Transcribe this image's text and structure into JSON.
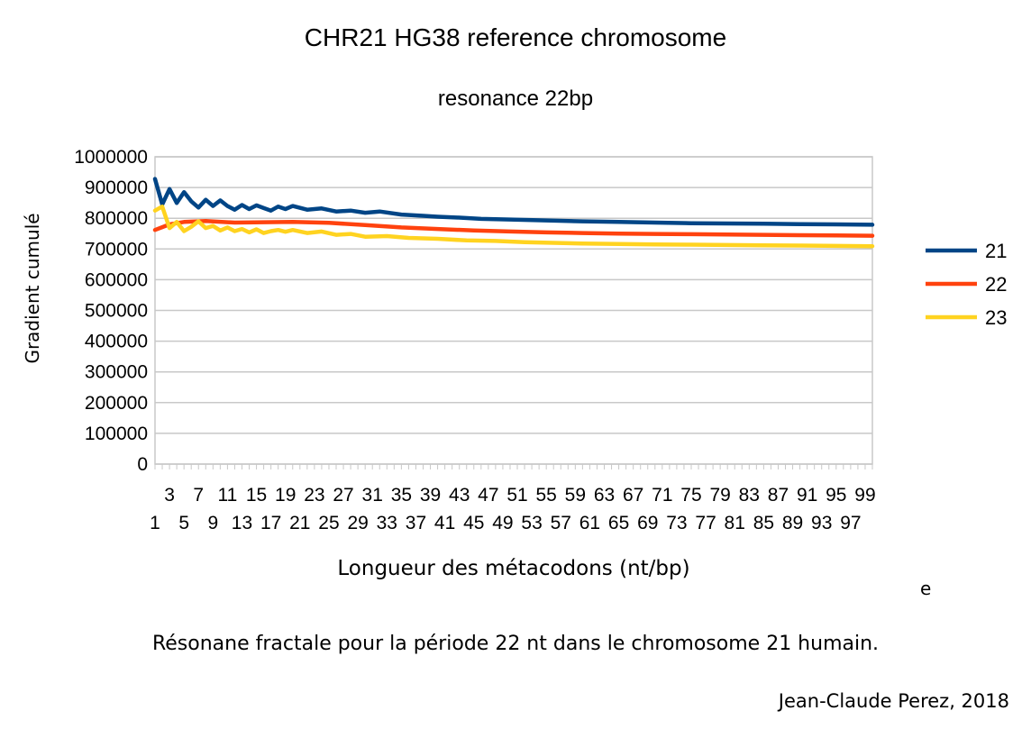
{
  "chart_data": {
    "type": "line",
    "title": "CHR21 HG38 reference chromosome",
    "subtitle": "resonance 22bp",
    "xlabel": "Longueur des métacodons (nt/bp)",
    "ylabel": "Gradient cumulé",
    "ylim": [
      0,
      1000000
    ],
    "yticks": [
      "0",
      "100000",
      "200000",
      "300000",
      "400000",
      "500000",
      "600000",
      "700000",
      "800000",
      "900000",
      "1000000"
    ],
    "x_range": [
      1,
      100
    ],
    "x_tick_labels_upper": [
      "3",
      "7",
      "11",
      "15",
      "19",
      "23",
      "27",
      "31",
      "35",
      "39",
      "43",
      "47",
      "51",
      "55",
      "59",
      "63",
      "67",
      "71",
      "75",
      "79",
      "83",
      "87",
      "91",
      "95",
      "99"
    ],
    "x_tick_labels_lower": [
      "1",
      "5",
      "9",
      "13",
      "17",
      "21",
      "25",
      "29",
      "33",
      "37",
      "41",
      "45",
      "49",
      "53",
      "57",
      "61",
      "65",
      "69",
      "73",
      "77",
      "81",
      "85",
      "89",
      "93",
      "97"
    ],
    "grid": true,
    "legend_position": "right",
    "series": [
      {
        "name": "21",
        "color": "#004586",
        "points": [
          [
            1,
            928000
          ],
          [
            2,
            845000
          ],
          [
            3,
            895000
          ],
          [
            4,
            850000
          ],
          [
            5,
            885000
          ],
          [
            6,
            855000
          ],
          [
            7,
            835000
          ],
          [
            8,
            860000
          ],
          [
            9,
            840000
          ],
          [
            10,
            858000
          ],
          [
            11,
            840000
          ],
          [
            12,
            828000
          ],
          [
            13,
            843000
          ],
          [
            14,
            830000
          ],
          [
            15,
            842000
          ],
          [
            16,
            833000
          ],
          [
            17,
            825000
          ],
          [
            18,
            838000
          ],
          [
            19,
            830000
          ],
          [
            20,
            840000
          ],
          [
            22,
            828000
          ],
          [
            24,
            832000
          ],
          [
            26,
            822000
          ],
          [
            28,
            825000
          ],
          [
            30,
            818000
          ],
          [
            32,
            822000
          ],
          [
            35,
            812000
          ],
          [
            38,
            808000
          ],
          [
            40,
            805000
          ],
          [
            43,
            802000
          ],
          [
            46,
            798000
          ],
          [
            50,
            796000
          ],
          [
            55,
            793000
          ],
          [
            60,
            790000
          ],
          [
            65,
            788000
          ],
          [
            70,
            786000
          ],
          [
            75,
            784000
          ],
          [
            80,
            783000
          ],
          [
            85,
            782000
          ],
          [
            90,
            781000
          ],
          [
            95,
            780000
          ],
          [
            100,
            779000
          ]
        ]
      },
      {
        "name": "22",
        "color": "#ff420e",
        "points": [
          [
            1,
            762000
          ],
          [
            3,
            780000
          ],
          [
            5,
            788000
          ],
          [
            8,
            791000
          ],
          [
            12,
            786000
          ],
          [
            16,
            787000
          ],
          [
            20,
            788000
          ],
          [
            25,
            785000
          ],
          [
            30,
            778000
          ],
          [
            35,
            770000
          ],
          [
            40,
            765000
          ],
          [
            45,
            760000
          ],
          [
            50,
            757000
          ],
          [
            55,
            754000
          ],
          [
            60,
            752000
          ],
          [
            65,
            750000
          ],
          [
            70,
            749000
          ],
          [
            75,
            748000
          ],
          [
            80,
            747000
          ],
          [
            85,
            746000
          ],
          [
            90,
            745000
          ],
          [
            95,
            744000
          ],
          [
            100,
            743000
          ]
        ]
      },
      {
        "name": "23",
        "color": "#ffd320",
        "points": [
          [
            1,
            825000
          ],
          [
            2,
            838000
          ],
          [
            3,
            768000
          ],
          [
            4,
            788000
          ],
          [
            5,
            758000
          ],
          [
            6,
            772000
          ],
          [
            7,
            790000
          ],
          [
            8,
            768000
          ],
          [
            9,
            775000
          ],
          [
            10,
            760000
          ],
          [
            11,
            770000
          ],
          [
            12,
            758000
          ],
          [
            13,
            765000
          ],
          [
            14,
            754000
          ],
          [
            15,
            764000
          ],
          [
            16,
            752000
          ],
          [
            17,
            758000
          ],
          [
            18,
            762000
          ],
          [
            19,
            756000
          ],
          [
            20,
            762000
          ],
          [
            22,
            752000
          ],
          [
            24,
            757000
          ],
          [
            26,
            746000
          ],
          [
            28,
            749000
          ],
          [
            30,
            740000
          ],
          [
            33,
            742000
          ],
          [
            36,
            736000
          ],
          [
            40,
            733000
          ],
          [
            44,
            728000
          ],
          [
            48,
            726000
          ],
          [
            52,
            722000
          ],
          [
            56,
            720000
          ],
          [
            60,
            718000
          ],
          [
            65,
            716000
          ],
          [
            70,
            715000
          ],
          [
            75,
            714000
          ],
          [
            80,
            713000
          ],
          [
            85,
            712000
          ],
          [
            90,
            711000
          ],
          [
            95,
            710000
          ],
          [
            100,
            709000
          ]
        ]
      }
    ]
  },
  "caption": "Résonane fractale pour la période 22 nt dans le chromosome 21 humain.",
  "credit": "Jean-Claude Perez, 2018",
  "stray_glyph": "e"
}
